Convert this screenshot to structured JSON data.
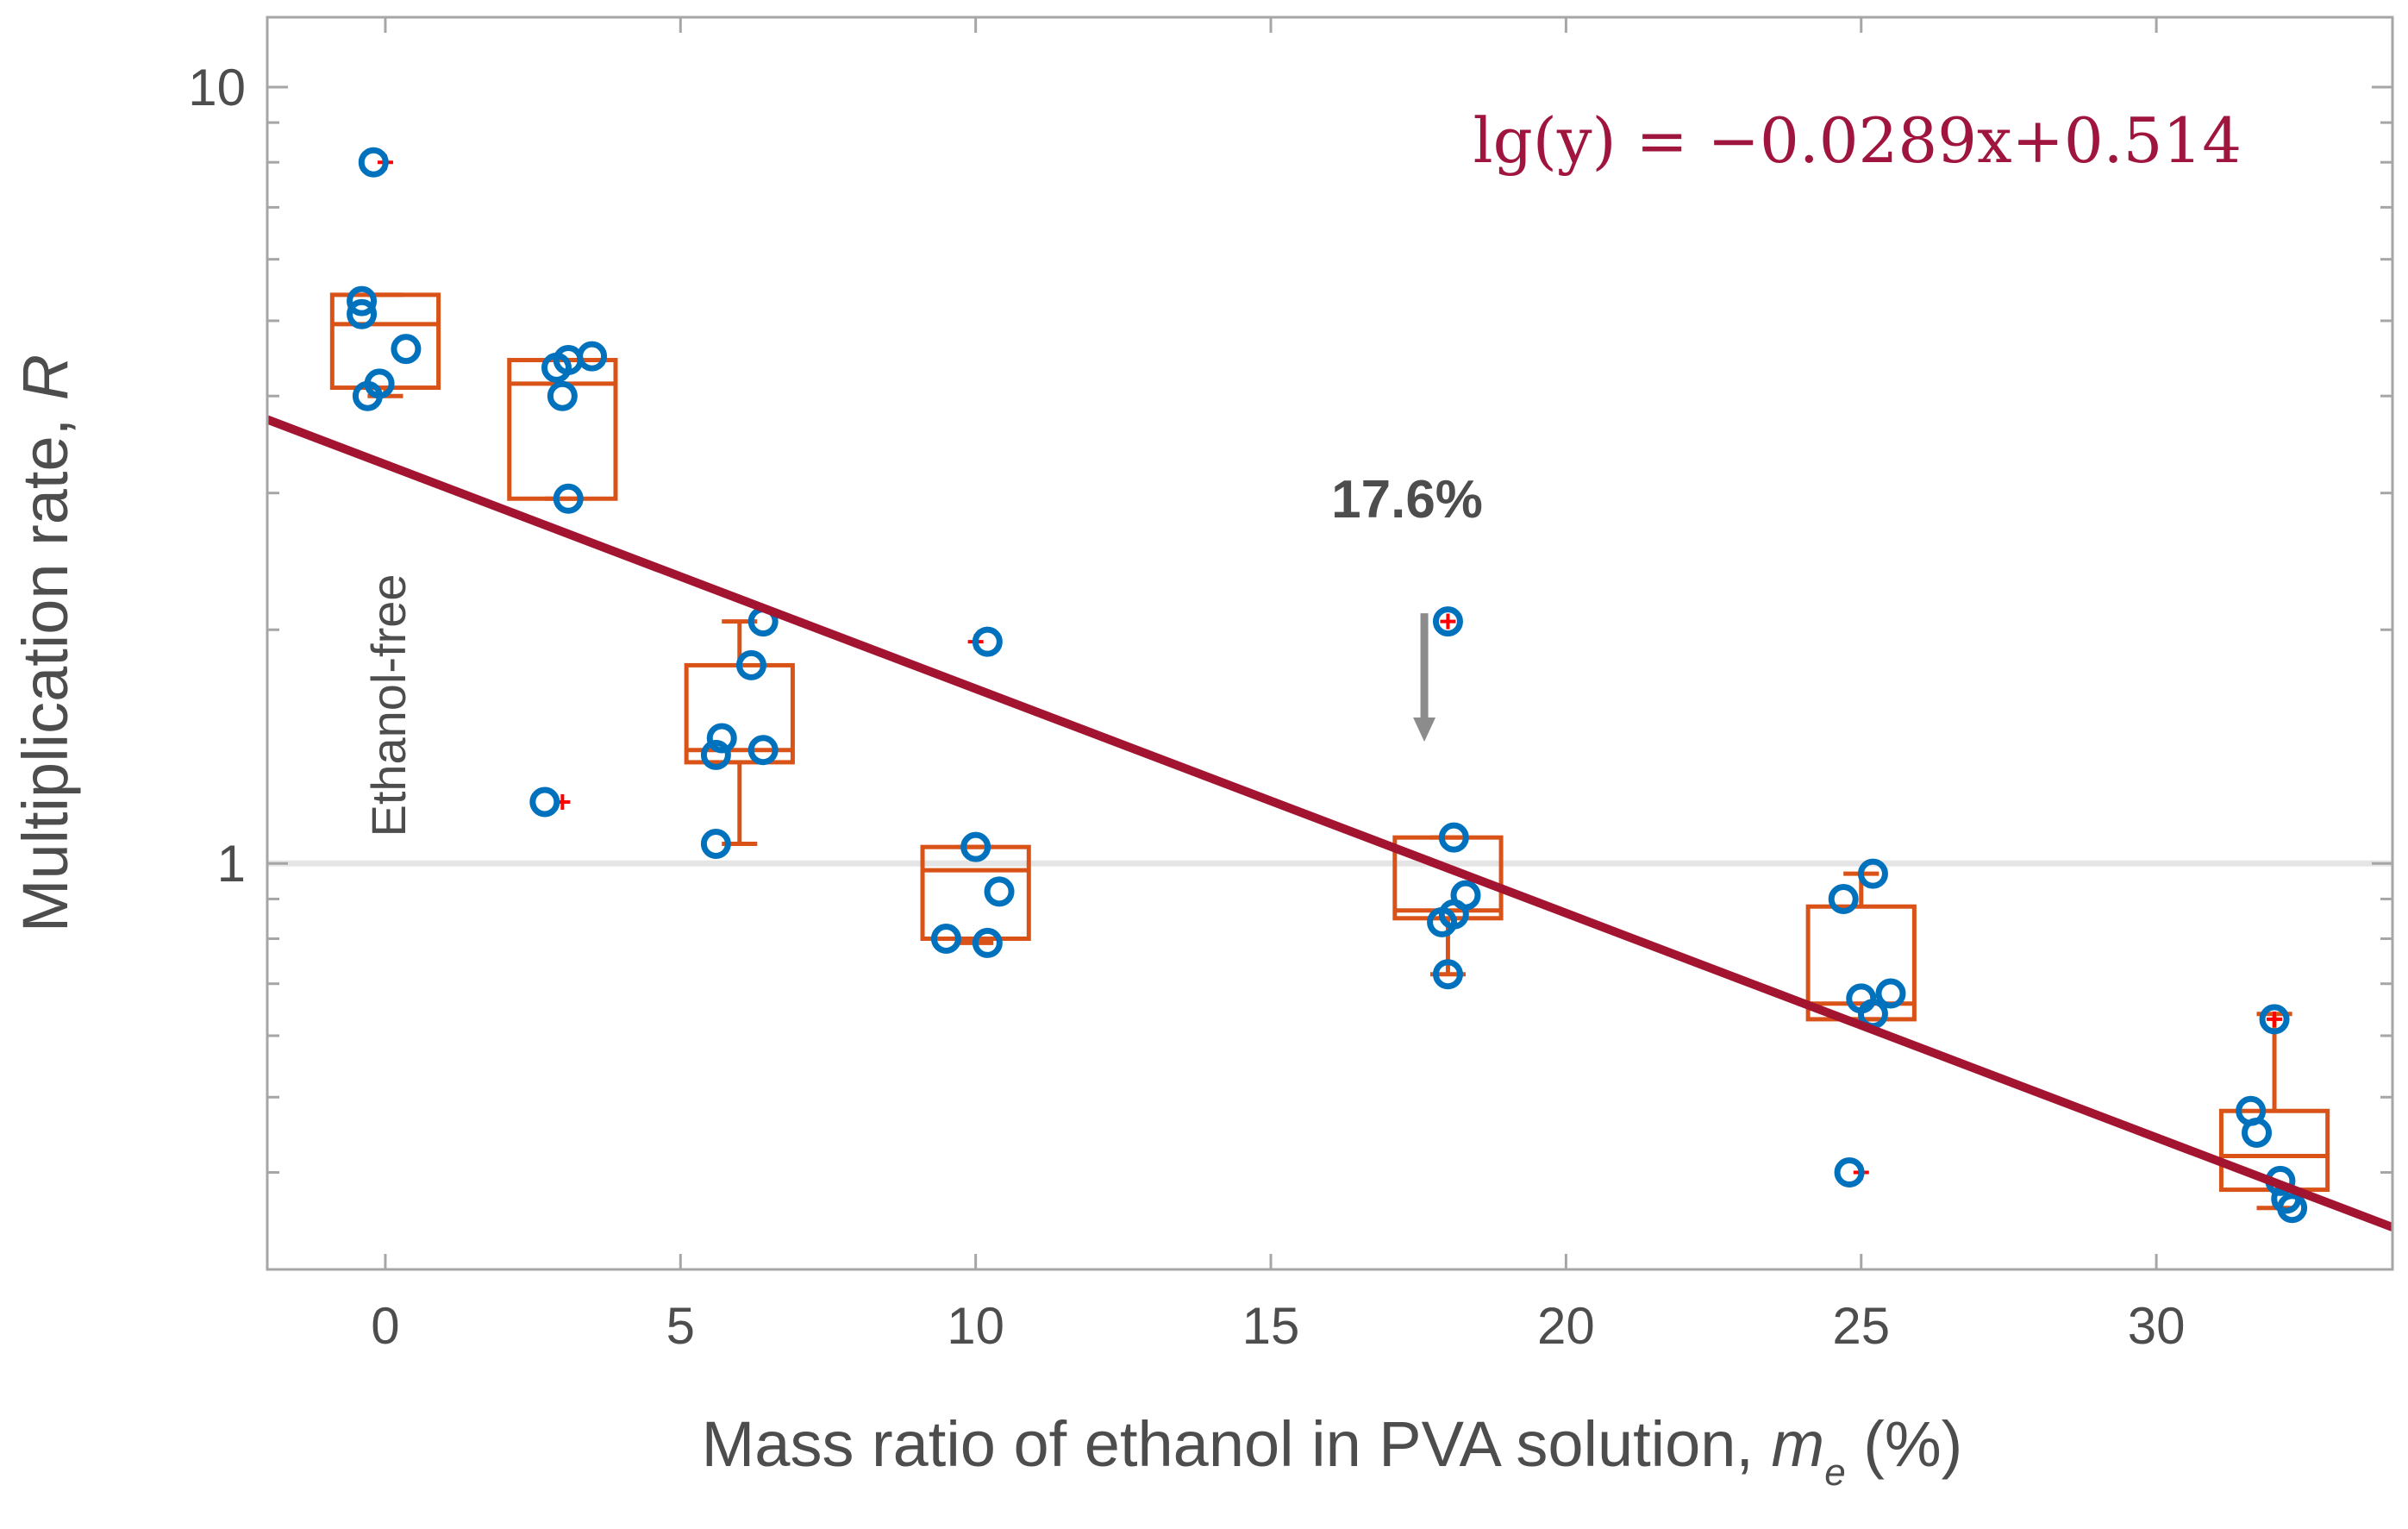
{
  "chart_data": {
    "type": "box_scatter",
    "xlabel": "Mass ratio of ethanol in PVA solution, ",
    "xlabel_symbol": "m",
    "xlabel_subscript": "e",
    "xlabel_unit": " (%)",
    "ylabel": "Multiplication rate, ",
    "ylabel_symbol": "R",
    "xlim": [
      -2,
      34
    ],
    "ylim": [
      0.3,
      12.3
    ],
    "yscale": "log",
    "xticks": [
      0,
      5,
      10,
      15,
      20,
      25,
      30
    ],
    "xtick_labels": [
      "0",
      "5",
      "10",
      "15",
      "20",
      "25",
      "30"
    ],
    "ytick_labels": [
      {
        "value": 1,
        "label": "1"
      },
      {
        "value": 10,
        "label": "10"
      }
    ],
    "reference_line": {
      "y": 1,
      "label": "Ethanol-free"
    },
    "fit": {
      "equation": "lg(y) = −0.0289x+0.514",
      "slope": -0.0289,
      "intercept": 0.514
    },
    "annotation": {
      "text": "17.6%",
      "x": 17.6,
      "y_arrow_top": 2.1,
      "y_arrow_bottom": 1.45
    },
    "groups": [
      {
        "x": 0,
        "q1": 4.1,
        "median": 4.95,
        "q3": 5.4,
        "wmin": 4.0,
        "wmax": 5.4,
        "outliers": [
          8.0
        ],
        "points": [
          {
            "x": -0.2,
            "y": 8.0
          },
          {
            "x": -0.4,
            "y": 5.3
          },
          {
            "x": -0.4,
            "y": 5.1
          },
          {
            "x": 0.35,
            "y": 4.6
          },
          {
            "x": -0.1,
            "y": 4.15
          },
          {
            "x": -0.3,
            "y": 4.0
          }
        ]
      },
      {
        "x": 3,
        "q1": 2.95,
        "median": 4.15,
        "q3": 4.45,
        "wmin": 2.95,
        "wmax": 4.45,
        "outliers": [
          1.2
        ],
        "points": [
          {
            "x": 3.5,
            "y": 4.5
          },
          {
            "x": 3.1,
            "y": 4.45
          },
          {
            "x": 2.9,
            "y": 4.35
          },
          {
            "x": 3.0,
            "y": 4.0
          },
          {
            "x": 3.1,
            "y": 2.95
          },
          {
            "x": 2.7,
            "y": 1.2
          }
        ]
      },
      {
        "x": 6,
        "q1": 1.35,
        "median": 1.4,
        "q3": 1.8,
        "wmin": 1.06,
        "wmax": 2.05,
        "outliers": [],
        "points": [
          {
            "x": 6.4,
            "y": 2.05
          },
          {
            "x": 6.2,
            "y": 1.8
          },
          {
            "x": 5.7,
            "y": 1.45
          },
          {
            "x": 5.6,
            "y": 1.38
          },
          {
            "x": 6.4,
            "y": 1.4
          },
          {
            "x": 5.6,
            "y": 1.06
          }
        ]
      },
      {
        "x": 10,
        "q1": 0.8,
        "median": 0.98,
        "q3": 1.05,
        "wmin": 0.79,
        "wmax": 1.05,
        "outliers": [
          1.93
        ],
        "points": [
          {
            "x": 10.2,
            "y": 1.93
          },
          {
            "x": 10.0,
            "y": 1.05
          },
          {
            "x": 10.4,
            "y": 0.92
          },
          {
            "x": 9.5,
            "y": 0.8
          },
          {
            "x": 10.2,
            "y": 0.79
          }
        ]
      },
      {
        "x": 18,
        "q1": 0.85,
        "median": 0.87,
        "q3": 1.08,
        "wmin": 0.72,
        "wmax": 1.08,
        "outliers": [
          2.05
        ],
        "points": [
          {
            "x": 18.0,
            "y": 2.05
          },
          {
            "x": 18.1,
            "y": 1.08
          },
          {
            "x": 18.3,
            "y": 0.91
          },
          {
            "x": 18.1,
            "y": 0.86
          },
          {
            "x": 17.9,
            "y": 0.84
          },
          {
            "x": 18.0,
            "y": 0.72
          }
        ]
      },
      {
        "x": 25,
        "q1": 0.63,
        "median": 0.66,
        "q3": 0.88,
        "wmin": 0.63,
        "wmax": 0.97,
        "outliers": [
          0.4
        ],
        "points": [
          {
            "x": 25.2,
            "y": 0.97
          },
          {
            "x": 24.7,
            "y": 0.9
          },
          {
            "x": 25.5,
            "y": 0.68
          },
          {
            "x": 25.0,
            "y": 0.67
          },
          {
            "x": 25.2,
            "y": 0.64
          },
          {
            "x": 24.8,
            "y": 0.4
          }
        ]
      },
      {
        "x": 32,
        "q1": 0.38,
        "median": 0.42,
        "q3": 0.48,
        "wmin": 0.36,
        "wmax": 0.64,
        "outliers": [
          0.63
        ],
        "points": [
          {
            "x": 32.0,
            "y": 0.63
          },
          {
            "x": 31.6,
            "y": 0.48
          },
          {
            "x": 31.7,
            "y": 0.45
          },
          {
            "x": 32.1,
            "y": 0.39
          },
          {
            "x": 32.2,
            "y": 0.37
          },
          {
            "x": 32.3,
            "y": 0.36
          }
        ]
      }
    ],
    "colors": {
      "box": "#d95319",
      "points": "#0072bd",
      "fit": "#a2142f",
      "outlier_mark": "#ff0000",
      "reference": "#e5e5e5",
      "arrow": "#8c8c8c",
      "annotation": "#404040",
      "ethanol_free": "#8c8c8c",
      "axes": "#a6a6a6"
    }
  }
}
